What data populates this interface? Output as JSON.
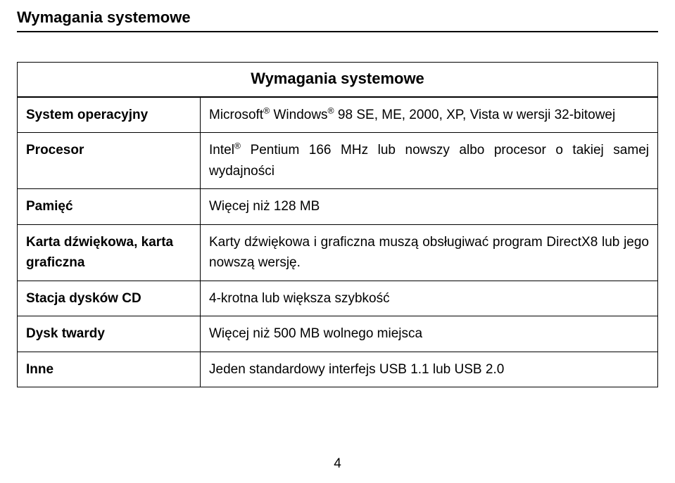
{
  "section_title": "Wymagania systemowe",
  "table": {
    "header": "Wymagania systemowe",
    "rows": [
      {
        "label": "System operacyjny",
        "value_parts": [
          "Microsoft",
          "®",
          " Windows",
          "®",
          " 98 SE, ME, 2000, XP, Vista w wersji 32-bitowej"
        ]
      },
      {
        "label": "Procesor",
        "value_parts": [
          "Intel",
          "®",
          " Pentium 166 MHz lub nowszy albo procesor o takiej samej wydajności"
        ]
      },
      {
        "label": "Pamięć",
        "value": "Więcej niż 128 MB"
      },
      {
        "label": "Karta dźwiękowa, karta graficzna",
        "value": "Karty dźwiękowa i graficzna muszą obsługiwać program DirectX8 lub jego nowszą wersję."
      },
      {
        "label": "Stacja dysków CD",
        "value": "4-krotna lub większa szybkość"
      },
      {
        "label": "Dysk twardy",
        "value": "Więcej niż 500 MB wolnego miejsca"
      },
      {
        "label": "Inne",
        "value": "Jeden standardowy interfejs USB 1.1 lub USB 2.0"
      }
    ]
  },
  "page_number": "4"
}
